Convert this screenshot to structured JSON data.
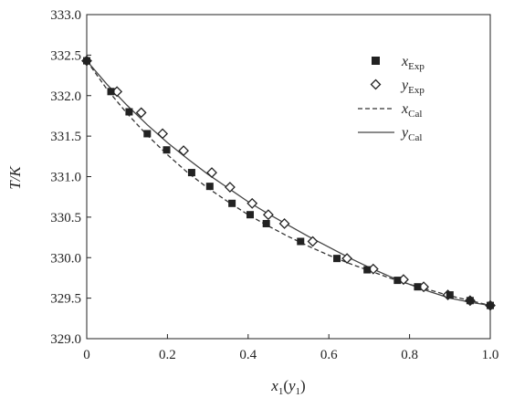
{
  "chart_data": {
    "type": "scatter",
    "title": "",
    "xlabel": {
      "main": "x",
      "sub": "1",
      "paren_main": "y",
      "paren_sub": "1"
    },
    "ylabel": "T/K",
    "xlim": [
      0,
      1.0
    ],
    "ylim": [
      329.0,
      333.0
    ],
    "x_ticks": [
      "0",
      "0.2",
      "0.4",
      "0.6",
      "0.8",
      "1.0"
    ],
    "y_ticks": [
      "329.0",
      "329.5",
      "330.0",
      "330.5",
      "331.0",
      "331.5",
      "332.0",
      "332.5",
      "333.0"
    ],
    "grid": false,
    "legend_position": "top-right",
    "series": [
      {
        "name": "x_Exp",
        "label_main": "x",
        "label_sub": "Exp",
        "marker": "filled-square",
        "color": "#222222",
        "x": [
          0.0,
          0.06,
          0.105,
          0.15,
          0.198,
          0.26,
          0.305,
          0.36,
          0.405,
          0.445,
          0.53,
          0.62,
          0.695,
          0.77,
          0.82,
          0.9,
          0.95,
          1.0
        ],
        "y": [
          332.43,
          332.05,
          331.8,
          331.53,
          331.33,
          331.05,
          330.88,
          330.67,
          330.53,
          330.42,
          330.2,
          329.99,
          329.85,
          329.72,
          329.64,
          329.54,
          329.47,
          329.41
        ]
      },
      {
        "name": "y_Exp",
        "label_main": "y",
        "label_sub": "Exp",
        "marker": "open-diamond",
        "color": "#222222",
        "x": [
          0.0,
          0.075,
          0.135,
          0.188,
          0.24,
          0.31,
          0.355,
          0.41,
          0.45,
          0.49,
          0.56,
          0.645,
          0.71,
          0.785,
          0.835,
          0.895,
          0.95,
          1.0
        ],
        "y": [
          332.43,
          332.05,
          331.79,
          331.53,
          331.32,
          331.05,
          330.87,
          330.67,
          330.53,
          330.42,
          330.2,
          329.99,
          329.86,
          329.73,
          329.64,
          329.54,
          329.47,
          329.41
        ]
      },
      {
        "name": "x_Cal",
        "label_main": "x",
        "label_sub": "Cal",
        "line": "dashed",
        "color": "#333333",
        "x": [
          0.0,
          0.05,
          0.1,
          0.15,
          0.2,
          0.25,
          0.3,
          0.35,
          0.4,
          0.45,
          0.5,
          0.55,
          0.6,
          0.65,
          0.7,
          0.75,
          0.8,
          0.85,
          0.9,
          0.95,
          1.0
        ],
        "y": [
          332.43,
          332.08,
          331.78,
          331.51,
          331.27,
          331.05,
          330.86,
          330.69,
          330.53,
          330.39,
          330.26,
          330.14,
          330.03,
          329.93,
          329.84,
          329.75,
          329.67,
          329.6,
          329.53,
          329.47,
          329.41
        ]
      },
      {
        "name": "y_Cal",
        "label_main": "y",
        "label_sub": "Cal",
        "line": "solid",
        "color": "#444444",
        "x": [
          0.0,
          0.05,
          0.1,
          0.15,
          0.2,
          0.25,
          0.3,
          0.35,
          0.4,
          0.45,
          0.5,
          0.55,
          0.6,
          0.65,
          0.7,
          0.75,
          0.8,
          0.85,
          0.9,
          0.95,
          1.0
        ],
        "y": [
          332.43,
          332.14,
          331.88,
          331.64,
          331.42,
          331.22,
          331.03,
          330.86,
          330.69,
          330.54,
          330.4,
          330.26,
          330.13,
          330.0,
          329.88,
          329.77,
          329.67,
          329.58,
          329.5,
          329.45,
          329.41
        ]
      }
    ]
  }
}
